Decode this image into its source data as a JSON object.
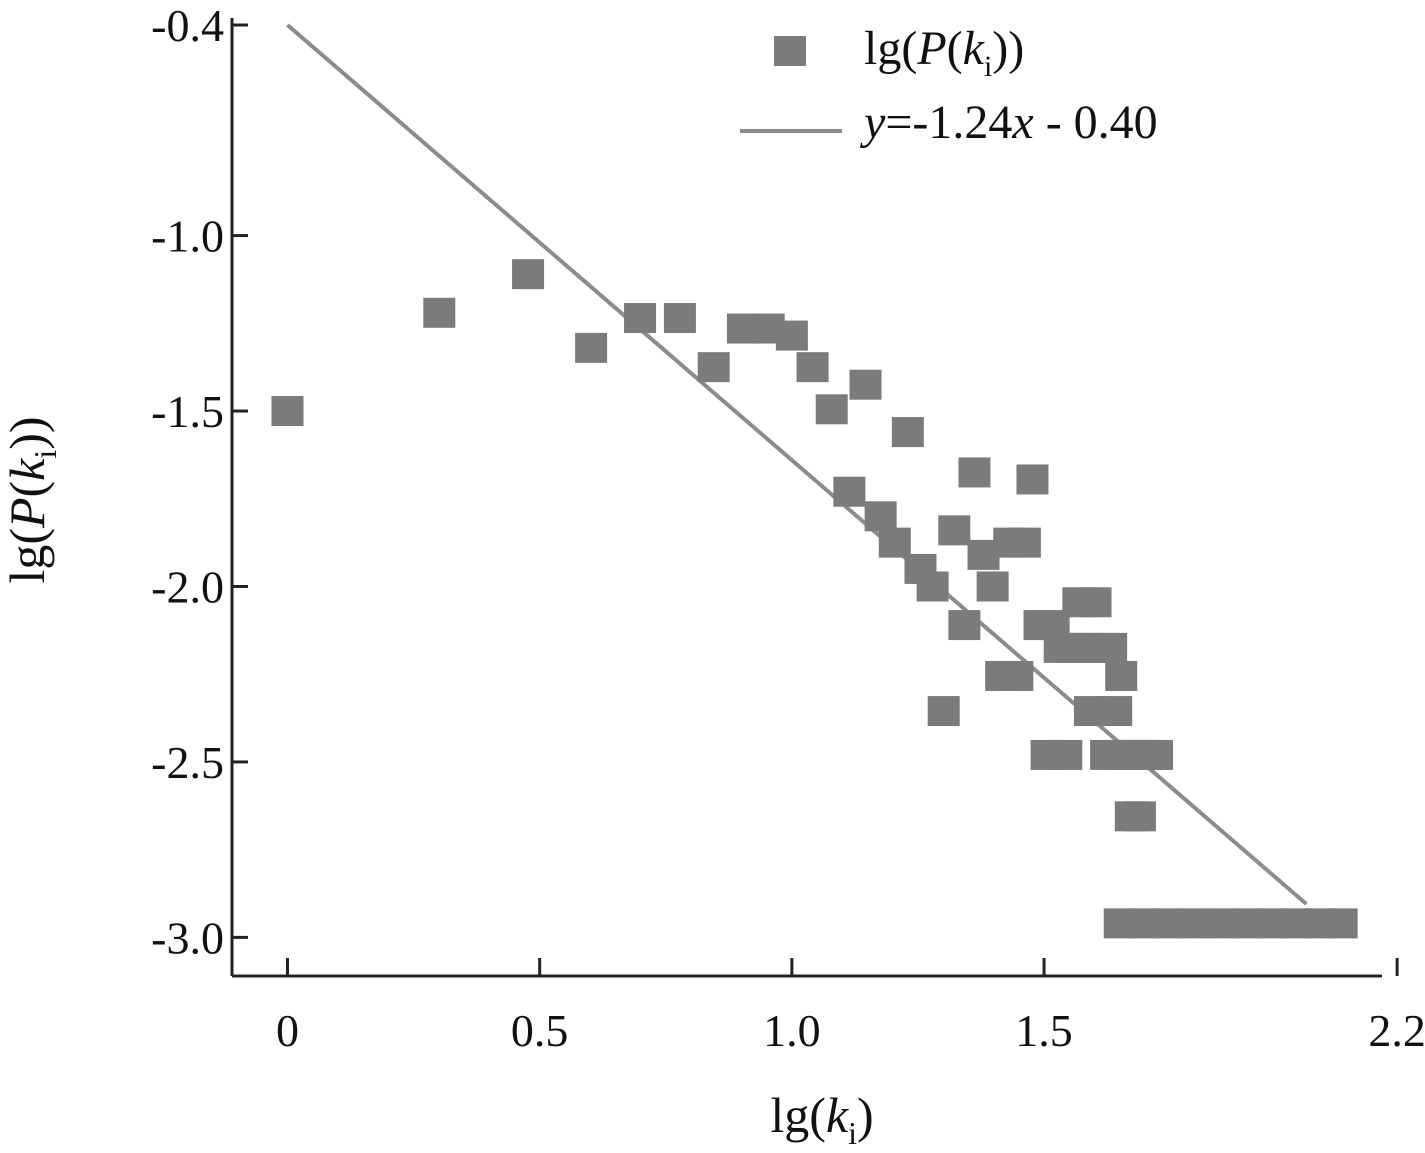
{
  "chart_data": {
    "type": "scatter",
    "xlabel": {
      "prefix": "lg(",
      "var": "k",
      "sub": "i",
      "suffix": ")"
    },
    "ylabel": {
      "prefix": "lg(",
      "var1": "P",
      "mid": "(",
      "var2": "k",
      "sub": "i",
      "suffix": "))"
    },
    "x_ticks": [
      "0",
      "0.5",
      "1.0",
      "1.5",
      "2.2"
    ],
    "x_tick_values": [
      0,
      0.5,
      1.0,
      1.5,
      2.2
    ],
    "y_ticks": [
      "-0.4",
      "-1.0",
      "-1.5",
      "-2.0",
      "-2.5",
      "-3.0"
    ],
    "y_tick_values": [
      -0.4,
      -1.0,
      -1.5,
      -2.0,
      -2.5,
      -3.0
    ],
    "xlim": [
      -0.11,
      2.17
    ],
    "ylim": [
      -3.11,
      -0.38
    ],
    "grid": false,
    "legend_position": "top-right",
    "colors": {
      "marker": "#7b7b7b",
      "line": "#8c8c8c",
      "axis": "#222222"
    },
    "series": [
      {
        "kind": "scatter",
        "legend": {
          "prefix": "lg(",
          "var1": "P",
          "mid": "(",
          "var2": "k",
          "sub": "i",
          "suffix": "))"
        },
        "points": [
          [
            0.0,
            -1.5
          ],
          [
            0.301,
            -1.22
          ],
          [
            0.477,
            -1.11
          ],
          [
            0.602,
            -1.32
          ],
          [
            0.699,
            -1.235
          ],
          [
            0.778,
            -1.235
          ],
          [
            0.845,
            -1.375
          ],
          [
            0.903,
            -1.265
          ],
          [
            0.954,
            -1.265
          ],
          [
            1.0,
            -1.285
          ],
          [
            1.041,
            -1.375
          ],
          [
            1.079,
            -1.495
          ],
          [
            1.114,
            -1.73
          ],
          [
            1.146,
            -1.425
          ],
          [
            1.176,
            -1.8
          ],
          [
            1.204,
            -1.875
          ],
          [
            1.23,
            -1.56
          ],
          [
            1.255,
            -1.95
          ],
          [
            1.279,
            -2.0
          ],
          [
            1.301,
            -2.355
          ],
          [
            1.322,
            -1.84
          ],
          [
            1.342,
            -2.11
          ],
          [
            1.362,
            -1.675
          ],
          [
            1.38,
            -1.91
          ],
          [
            1.398,
            -2.0
          ],
          [
            1.415,
            -2.255
          ],
          [
            1.431,
            -1.875
          ],
          [
            1.447,
            -2.255
          ],
          [
            1.462,
            -1.875
          ],
          [
            1.477,
            -1.695
          ],
          [
            1.491,
            -2.11
          ],
          [
            1.505,
            -2.48
          ],
          [
            1.519,
            -2.11
          ],
          [
            1.531,
            -2.175
          ],
          [
            1.544,
            -2.48
          ],
          [
            1.556,
            -2.175
          ],
          [
            1.568,
            -2.045
          ],
          [
            1.58,
            -2.175
          ],
          [
            1.591,
            -2.355
          ],
          [
            1.602,
            -2.045
          ],
          [
            1.613,
            -2.175
          ],
          [
            1.623,
            -2.48
          ],
          [
            1.633,
            -2.175
          ],
          [
            1.643,
            -2.355
          ],
          [
            1.653,
            -2.255
          ],
          [
            1.663,
            -2.48
          ],
          [
            1.672,
            -2.655
          ],
          [
            1.681,
            -2.48
          ],
          [
            1.69,
            -2.655
          ],
          [
            1.699,
            -2.48
          ],
          [
            1.724,
            -2.48
          ],
          [
            1.65,
            -2.96
          ],
          [
            1.7,
            -2.96
          ],
          [
            1.75,
            -2.96
          ],
          [
            1.8,
            -2.96
          ],
          [
            1.85,
            -2.96
          ],
          [
            1.9,
            -2.96
          ],
          [
            1.95,
            -2.96
          ],
          [
            2.0,
            -2.96
          ],
          [
            2.05,
            -2.96
          ],
          [
            2.09,
            -2.96
          ]
        ]
      },
      {
        "kind": "line",
        "legend": {
          "var": "y",
          "rest": "=-1.24",
          "var2": "x",
          "tail": " - 0.40"
        },
        "slope": -1.24,
        "intercept": -0.4,
        "x_range": [
          0.0,
          2.02
        ]
      }
    ]
  }
}
